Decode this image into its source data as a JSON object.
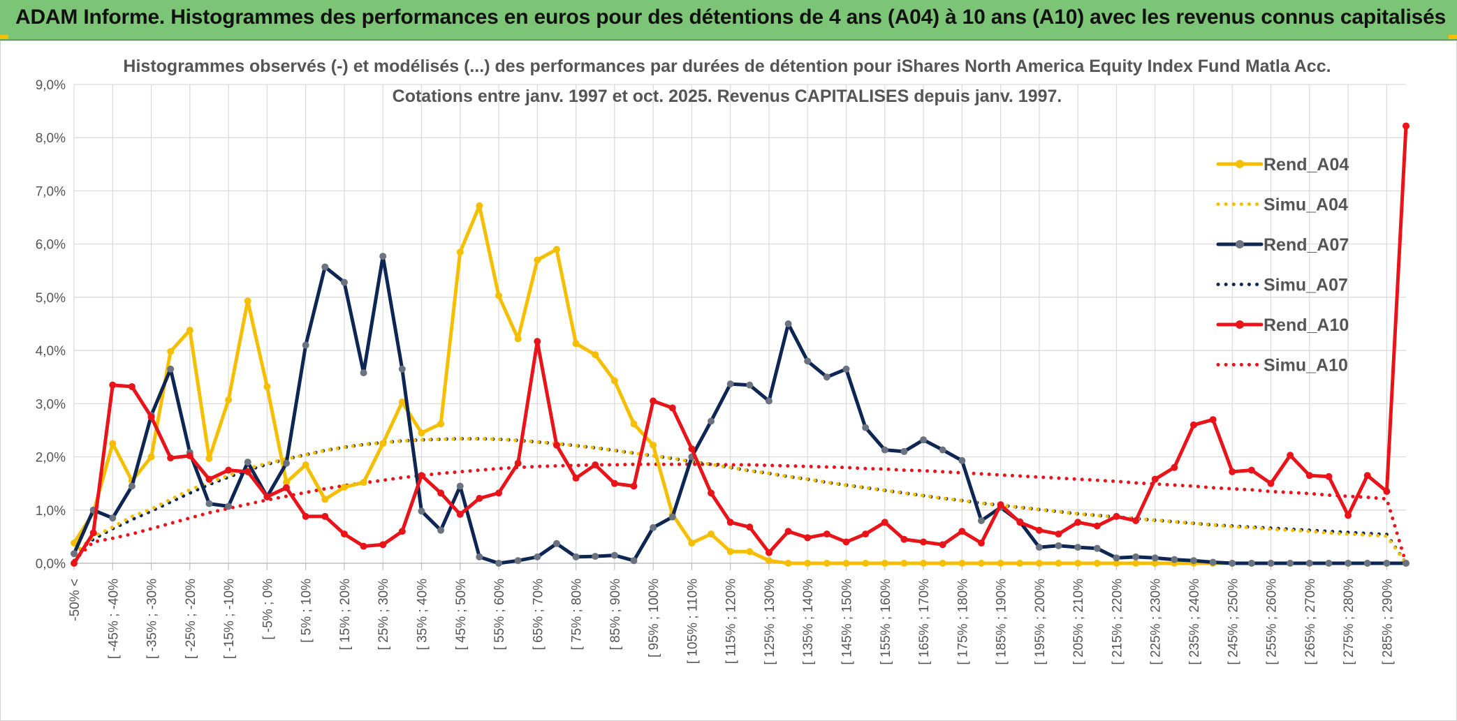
{
  "header": {
    "banner_title": "ADAM Informe. Histogrammes des performances en euros pour des détentions de 4 ans (A04) à 10 ans (A10) avec les revenus connus capitalisés"
  },
  "colors": {
    "banner_bg": "#7cc576",
    "Rend_A04": "#f5bf00",
    "Simu_A04": "#f5bf00",
    "Rend_A07": "#0d2653",
    "Simu_A07": "#0d2653",
    "Rend_A10": "#e8141a",
    "Simu_A10": "#e8141a",
    "marker_A07": "#6b7280",
    "gridline": "#d9d9d9"
  },
  "chart_data": {
    "type": "line",
    "title_line1": "Histogrammes observés (-) et modélisés (...) des performances par durées de détention pour iShares North America Equity Index Fund Matla Acc.",
    "title_line2": "Cotations entre janv. 1997 et oct. 2025. Revenus CAPITALISES depuis janv. 1997.",
    "grid": true,
    "legend_position": "right",
    "ylim": [
      0,
      9
    ],
    "yticks": [
      0,
      1,
      2,
      3,
      4,
      5,
      6,
      7,
      8,
      9
    ],
    "ytick_labels": [
      "0,0%",
      "1,0%",
      "2,0%",
      "3,0%",
      "4,0%",
      "5,0%",
      "6,0%",
      "7,0%",
      "8,0%",
      "9,0%"
    ],
    "x_tick_labels": [
      "-50% <",
      "[ -45% ; -40%",
      "[ -35% ; -30%",
      "[ -25% ; -20%",
      "[ -15% ; -10%",
      "[ -5% ; 0%",
      "[ 5% ; 10%",
      "[ 15% ; 20%",
      "[ 25% ; 30%",
      "[ 35% ; 40%",
      "[ 45% ; 50%",
      "[ 55% ; 60%",
      "[ 65% ; 70%",
      "[ 75% ; 80%",
      "[ 85% ; 90%",
      "[ 95% ; 100%",
      "[ 105% ; 110%",
      "[ 115% ; 120%",
      "[ 125% ; 130%",
      "[ 135% ; 140%",
      "[ 145% ; 150%",
      "[ 155% ; 160%",
      "[ 165% ; 170%",
      "[ 175% ; 180%",
      "[ 185% ; 190%",
      "[ 195% ; 200%",
      "[ 205% ; 210%",
      "[ 215% ; 220%",
      "[ 225% ; 230%",
      "[ 235% ; 240%",
      "[ 245% ; 250%",
      "[ 255% ; 260%",
      "[ 265% ; 270%",
      "[ 275% ; 280%",
      "[ 285% ; 290%"
    ],
    "n_bins": 70,
    "series": [
      {
        "name": "Rend_A04",
        "style": "solid",
        "markers": true,
        "values": [
          0.38,
          0.95,
          2.25,
          1.55,
          2.0,
          3.98,
          4.38,
          1.97,
          3.07,
          4.93,
          3.32,
          1.52,
          1.85,
          1.2,
          1.43,
          1.52,
          2.25,
          3.03,
          2.45,
          2.62,
          5.85,
          6.72,
          5.03,
          4.22,
          5.7,
          5.9,
          4.13,
          3.92,
          3.43,
          2.62,
          2.22,
          0.92,
          0.38,
          0.55,
          0.22,
          0.22,
          0.05,
          0.0,
          0.0,
          0.0,
          0.0,
          0.0,
          0.0,
          0.0,
          0.0,
          0.0,
          0.0,
          0.0,
          0.0,
          0.0,
          0.0,
          0.0,
          0.0,
          0.0,
          0.0,
          0.0,
          0.0,
          0.0,
          0.0,
          0.0,
          0.0,
          0.0,
          0.0,
          0.0,
          0.0,
          0.0,
          0.0,
          0.0,
          0.0,
          0.0
        ]
      },
      {
        "name": "Simu_A04",
        "style": "dotted",
        "markers": false,
        "values": [
          0.18,
          0.5,
          0.68,
          0.88,
          1.02,
          1.2,
          1.38,
          1.52,
          1.65,
          1.78,
          1.88,
          1.96,
          2.04,
          2.12,
          2.18,
          2.23,
          2.27,
          2.3,
          2.32,
          2.33,
          2.34,
          2.34,
          2.33,
          2.31,
          2.28,
          2.25,
          2.21,
          2.17,
          2.12,
          2.07,
          2.02,
          1.97,
          1.91,
          1.86,
          1.8,
          1.74,
          1.69,
          1.63,
          1.58,
          1.52,
          1.47,
          1.42,
          1.37,
          1.32,
          1.27,
          1.22,
          1.18,
          1.13,
          1.09,
          1.05,
          1.01,
          0.97,
          0.93,
          0.9,
          0.87,
          0.84,
          0.81,
          0.78,
          0.75,
          0.72,
          0.69,
          0.67,
          0.64,
          0.62,
          0.6,
          0.57,
          0.55,
          0.53,
          0.51,
          0.0
        ]
      },
      {
        "name": "Rend_A07",
        "style": "solid",
        "markers": true,
        "values": [
          0.18,
          1.0,
          0.85,
          1.45,
          2.78,
          3.65,
          2.08,
          1.12,
          1.07,
          1.9,
          1.25,
          1.88,
          4.1,
          5.57,
          5.28,
          3.58,
          5.77,
          3.65,
          0.98,
          0.62,
          1.45,
          0.12,
          0.0,
          0.05,
          0.12,
          0.37,
          0.12,
          0.13,
          0.15,
          0.05,
          0.67,
          0.87,
          2.0,
          2.67,
          3.37,
          3.35,
          3.05,
          4.5,
          3.8,
          3.5,
          3.65,
          2.55,
          2.13,
          2.1,
          2.32,
          2.13,
          1.93,
          0.8,
          1.05,
          0.78,
          0.3,
          0.33,
          0.3,
          0.28,
          0.1,
          0.12,
          0.1,
          0.07,
          0.05,
          0.02,
          0.0,
          0.0,
          0.0,
          0.0,
          0.0,
          0.0,
          0.0,
          0.0,
          0.0,
          0.0
        ]
      },
      {
        "name": "Simu_A07",
        "style": "dotted",
        "markers": false,
        "values": [
          0.18,
          0.45,
          0.65,
          0.82,
          0.98,
          1.15,
          1.32,
          1.48,
          1.62,
          1.75,
          1.86,
          1.96,
          2.04,
          2.12,
          2.18,
          2.23,
          2.27,
          2.3,
          2.32,
          2.33,
          2.34,
          2.34,
          2.33,
          2.31,
          2.28,
          2.25,
          2.21,
          2.17,
          2.12,
          2.07,
          2.02,
          1.97,
          1.91,
          1.86,
          1.8,
          1.74,
          1.69,
          1.63,
          1.58,
          1.52,
          1.47,
          1.42,
          1.37,
          1.32,
          1.27,
          1.22,
          1.18,
          1.13,
          1.09,
          1.05,
          1.01,
          0.97,
          0.93,
          0.9,
          0.87,
          0.84,
          0.81,
          0.78,
          0.75,
          0.72,
          0.7,
          0.68,
          0.66,
          0.64,
          0.62,
          0.6,
          0.58,
          0.56,
          0.54,
          0.0
        ]
      },
      {
        "name": "Rend_A10",
        "style": "solid",
        "markers": true,
        "values": [
          0.0,
          0.57,
          3.35,
          3.32,
          2.75,
          1.98,
          2.02,
          1.58,
          1.75,
          1.72,
          1.25,
          1.42,
          0.88,
          0.88,
          0.55,
          0.32,
          0.35,
          0.6,
          1.65,
          1.32,
          0.92,
          1.22,
          1.32,
          1.88,
          4.17,
          2.22,
          1.6,
          1.85,
          1.5,
          1.45,
          3.05,
          2.92,
          2.15,
          1.32,
          0.77,
          0.68,
          0.2,
          0.6,
          0.48,
          0.55,
          0.4,
          0.55,
          0.77,
          0.45,
          0.4,
          0.35,
          0.6,
          0.38,
          1.1,
          0.77,
          0.62,
          0.55,
          0.77,
          0.7,
          0.88,
          0.8,
          1.58,
          1.8,
          2.6,
          2.7,
          1.72,
          1.75,
          1.5,
          2.03,
          1.65,
          1.63,
          0.9,
          1.65,
          1.35,
          8.22
        ]
      },
      {
        "name": "Simu_A10",
        "style": "dotted",
        "markers": false,
        "values": [
          0.05,
          0.4,
          0.47,
          0.55,
          0.65,
          0.75,
          0.85,
          0.95,
          1.03,
          1.11,
          1.19,
          1.26,
          1.33,
          1.4,
          1.46,
          1.51,
          1.56,
          1.61,
          1.65,
          1.69,
          1.72,
          1.75,
          1.78,
          1.8,
          1.82,
          1.83,
          1.84,
          1.85,
          1.85,
          1.86,
          1.86,
          1.86,
          1.86,
          1.86,
          1.85,
          1.85,
          1.84,
          1.83,
          1.82,
          1.81,
          1.8,
          1.78,
          1.77,
          1.75,
          1.74,
          1.72,
          1.7,
          1.68,
          1.66,
          1.64,
          1.62,
          1.6,
          1.58,
          1.56,
          1.54,
          1.51,
          1.49,
          1.47,
          1.45,
          1.42,
          1.4,
          1.38,
          1.35,
          1.33,
          1.31,
          1.28,
          1.26,
          1.24,
          1.21,
          0.0
        ]
      }
    ]
  }
}
